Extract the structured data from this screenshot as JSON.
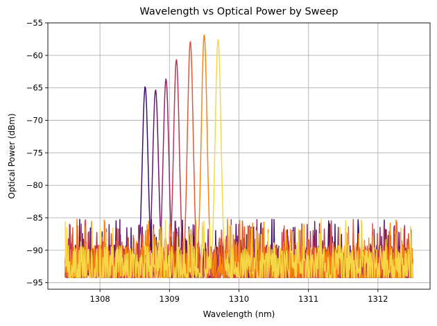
{
  "chart_data": {
    "type": "line",
    "title": "Wavelength vs Optical Power by Sweep",
    "xlabel": "Wavelength (nm)",
    "ylabel": "Optical Power (dBm)",
    "xlim": [
      1307.25,
      1312.75
    ],
    "ylim": [
      -96,
      -55
    ],
    "xticks": [
      1308,
      1309,
      1310,
      1311,
      1312
    ],
    "yticks": [
      -95,
      -90,
      -85,
      -80,
      -75,
      -70,
      -65,
      -60,
      -55
    ],
    "grid": true,
    "x_range": [
      1307.5,
      1312.5
    ],
    "noise_floor": -94.2,
    "series": [
      {
        "peak_x": 1308.65,
        "peak_y": -64.8,
        "color": "#3b0f70"
      },
      {
        "peak_x": 1308.8,
        "peak_y": -65.3,
        "color": "#6a176e"
      },
      {
        "peak_x": 1308.95,
        "peak_y": -63.6,
        "color": "#932667"
      },
      {
        "peak_x": 1309.1,
        "peak_y": -60.6,
        "color": "#bc3754"
      },
      {
        "peak_x": 1309.3,
        "peak_y": -57.8,
        "color": "#e25734"
      },
      {
        "peak_x": 1309.5,
        "peak_y": -56.8,
        "color": "#f8850f"
      },
      {
        "peak_x": 1309.7,
        "peak_y": -57.5,
        "color": "#f6d746"
      }
    ]
  }
}
